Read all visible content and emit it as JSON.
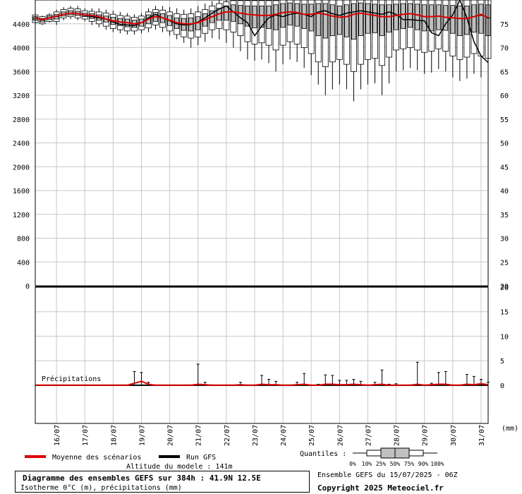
{
  "chart_data": {
    "type": "box",
    "title": "Diagramme des ensembles GEFS sur 384h : 41.9N 12.5E",
    "subtitle": "Isotherme 0°C (m), précipitations (mm)",
    "altitude_label": "Altitude du modele : 141m",
    "ensemble_label": "Ensemble GEFS du 15/07/2025 - 06Z",
    "copyright": "Copyright 2025 Meteociel.fr",
    "precip_label": "Précipitations",
    "precip_unit": "(mm)",
    "quantiles_label": "Quantiles :",
    "quantile_ticks": [
      "0%",
      "10%",
      "25%",
      "50%",
      "75%",
      "90%",
      "100%"
    ],
    "x_date_labels": [
      "16/07",
      "17/07",
      "18/07",
      "19/07",
      "20/07",
      "21/07",
      "22/07",
      "23/07",
      "24/07",
      "25/07",
      "26/07",
      "27/07",
      "28/07",
      "29/07",
      "30/07",
      "31/07"
    ],
    "top_panel": {
      "ylim": [
        0,
        4800
      ],
      "left_ticks": [
        0,
        400,
        800,
        1200,
        1600,
        2000,
        2400,
        2800,
        3200,
        3600,
        4000,
        4400
      ],
      "right_ticks": [
        20,
        25,
        30,
        35,
        40,
        45,
        50,
        55,
        60,
        65,
        70,
        75
      ]
    },
    "bottom_panel": {
      "ylim": [
        -7.8,
        20
      ],
      "right_ticks": [
        0,
        5,
        10,
        15,
        20
      ]
    },
    "legend": [
      {
        "name": "Moyenne des scénarios",
        "color": "#dd0000"
      },
      {
        "name": "Run GFS",
        "color": "#000000"
      }
    ],
    "colors": {
      "mean": "#dd0000",
      "run": "#000000",
      "box": "#c0c0c0",
      "grid": "#c8c8c8"
    },
    "time_hours": [
      0,
      6,
      12,
      18,
      24,
      30,
      36,
      42,
      48,
      54,
      60,
      66,
      72,
      78,
      84,
      90,
      96,
      102,
      108,
      114,
      120,
      126,
      132,
      138,
      144,
      150,
      156,
      162,
      168,
      174,
      180,
      186,
      192,
      198,
      204,
      210,
      216,
      222,
      228,
      234,
      240,
      246,
      252,
      258,
      264,
      270,
      276,
      282,
      288,
      294,
      300,
      306,
      312,
      318,
      324,
      330,
      336,
      342,
      348,
      354,
      360,
      366,
      372,
      378,
      384
    ],
    "mean": [
      4500,
      4470,
      4500,
      4530,
      4560,
      4580,
      4570,
      4550,
      4540,
      4520,
      4480,
      4450,
      4430,
      4420,
      4400,
      4420,
      4480,
      4520,
      4500,
      4460,
      4420,
      4400,
      4400,
      4420,
      4470,
      4520,
      4570,
      4600,
      4600,
      4580,
      4560,
      4550,
      4540,
      4540,
      4560,
      4590,
      4600,
      4590,
      4560,
      4560,
      4580,
      4560,
      4530,
      4510,
      4520,
      4560,
      4580,
      4560,
      4540,
      4520,
      4520,
      4540,
      4560,
      4570,
      4550,
      4520,
      4520,
      4530,
      4510,
      4500,
      4490,
      4490,
      4520,
      4560,
      4500
    ],
    "run": [
      4500,
      4470,
      4500,
      4530,
      4560,
      4580,
      4570,
      4540,
      4520,
      4500,
      4480,
      4430,
      4390,
      4380,
      4370,
      4420,
      4500,
      4560,
      4500,
      4450,
      4400,
      4380,
      4390,
      4430,
      4500,
      4580,
      4650,
      4700,
      4600,
      4500,
      4420,
      4200,
      4360,
      4500,
      4550,
      4520,
      4560,
      4580,
      4560,
      4520,
      4600,
      4620,
      4570,
      4540,
      4580,
      4600,
      4620,
      4600,
      4580,
      4560,
      4600,
      4560,
      4470,
      4470,
      4460,
      4450,
      4250,
      4200,
      4400,
      4550,
      4800,
      4500,
      4100,
      3860,
      3750
    ],
    "boxes": [
      {
        "p0": 4400,
        "p10": 4420,
        "p25": 4460,
        "p50": 4490,
        "p75": 4520,
        "p90": 4550,
        "p100": 4580
      },
      {
        "p0": 4380,
        "p10": 4400,
        "p25": 4430,
        "p50": 4460,
        "p75": 4490,
        "p90": 4520,
        "p100": 4540
      },
      {
        "p0": 4420,
        "p10": 4440,
        "p25": 4470,
        "p50": 4500,
        "p75": 4530,
        "p90": 4550,
        "p100": 4580
      },
      {
        "p0": 4380,
        "p10": 4440,
        "p25": 4480,
        "p50": 4520,
        "p75": 4560,
        "p90": 4600,
        "p100": 4640
      },
      {
        "p0": 4460,
        "p10": 4500,
        "p25": 4530,
        "p50": 4560,
        "p75": 4600,
        "p90": 4640,
        "p100": 4680
      },
      {
        "p0": 4480,
        "p10": 4520,
        "p25": 4550,
        "p50": 4580,
        "p75": 4620,
        "p90": 4660,
        "p100": 4700
      },
      {
        "p0": 4460,
        "p10": 4500,
        "p25": 4540,
        "p50": 4570,
        "p75": 4610,
        "p90": 4650,
        "p100": 4700
      },
      {
        "p0": 4440,
        "p10": 4480,
        "p25": 4520,
        "p50": 4550,
        "p75": 4580,
        "p90": 4620,
        "p100": 4660
      },
      {
        "p0": 4380,
        "p10": 4440,
        "p25": 4490,
        "p50": 4530,
        "p75": 4570,
        "p90": 4610,
        "p100": 4660
      },
      {
        "p0": 4340,
        "p10": 4400,
        "p25": 4460,
        "p50": 4510,
        "p75": 4550,
        "p90": 4600,
        "p100": 4660
      },
      {
        "p0": 4300,
        "p10": 4360,
        "p25": 4430,
        "p50": 4480,
        "p75": 4530,
        "p90": 4580,
        "p100": 4640
      },
      {
        "p0": 4260,
        "p10": 4320,
        "p25": 4390,
        "p50": 4450,
        "p75": 4510,
        "p90": 4560,
        "p100": 4620
      },
      {
        "p0": 4240,
        "p10": 4300,
        "p25": 4370,
        "p50": 4430,
        "p75": 4490,
        "p90": 4540,
        "p100": 4600
      },
      {
        "p0": 4220,
        "p10": 4280,
        "p25": 4350,
        "p50": 4420,
        "p75": 4480,
        "p90": 4530,
        "p100": 4580
      },
      {
        "p0": 4220,
        "p10": 4280,
        "p25": 4340,
        "p50": 4400,
        "p75": 4460,
        "p90": 4510,
        "p100": 4560
      },
      {
        "p0": 4240,
        "p10": 4300,
        "p25": 4360,
        "p50": 4420,
        "p75": 4480,
        "p90": 4530,
        "p100": 4580
      },
      {
        "p0": 4260,
        "p10": 4330,
        "p25": 4400,
        "p50": 4480,
        "p75": 4550,
        "p90": 4600,
        "p100": 4660
      },
      {
        "p0": 4300,
        "p10": 4380,
        "p25": 4440,
        "p50": 4520,
        "p75": 4590,
        "p90": 4640,
        "p100": 4700
      },
      {
        "p0": 4260,
        "p10": 4340,
        "p25": 4420,
        "p50": 4500,
        "p75": 4570,
        "p90": 4630,
        "p100": 4700
      },
      {
        "p0": 4200,
        "p10": 4280,
        "p25": 4370,
        "p50": 4460,
        "p75": 4540,
        "p90": 4600,
        "p100": 4680
      },
      {
        "p0": 4140,
        "p10": 4220,
        "p25": 4320,
        "p50": 4420,
        "p75": 4500,
        "p90": 4570,
        "p100": 4660
      },
      {
        "p0": 4080,
        "p10": 4180,
        "p25": 4290,
        "p50": 4400,
        "p75": 4490,
        "p90": 4560,
        "p100": 4640
      },
      {
        "p0": 4000,
        "p10": 4160,
        "p25": 4280,
        "p50": 4400,
        "p75": 4500,
        "p90": 4570,
        "p100": 4660
      },
      {
        "p0": 4040,
        "p10": 4180,
        "p25": 4300,
        "p50": 4420,
        "p75": 4520,
        "p90": 4600,
        "p100": 4700
      },
      {
        "p0": 4100,
        "p10": 4240,
        "p25": 4360,
        "p50": 4470,
        "p75": 4570,
        "p90": 4640,
        "p100": 4740
      },
      {
        "p0": 4160,
        "p10": 4300,
        "p25": 4420,
        "p50": 4520,
        "p75": 4620,
        "p90": 4700,
        "p100": 4780
      },
      {
        "p0": 4140,
        "p10": 4320,
        "p25": 4460,
        "p50": 4570,
        "p75": 4660,
        "p90": 4740,
        "p100": 4800
      },
      {
        "p0": 4080,
        "p10": 4300,
        "p25": 4460,
        "p50": 4600,
        "p75": 4700,
        "p90": 4770,
        "p100": 4800
      },
      {
        "p0": 4000,
        "p10": 4260,
        "p25": 4440,
        "p50": 4600,
        "p75": 4720,
        "p90": 4790,
        "p100": 4800
      },
      {
        "p0": 3940,
        "p10": 4200,
        "p25": 4400,
        "p50": 4580,
        "p75": 4710,
        "p90": 4790,
        "p100": 4800
      },
      {
        "p0": 3800,
        "p10": 4100,
        "p25": 4360,
        "p50": 4560,
        "p75": 4700,
        "p90": 4790,
        "p100": 4800
      },
      {
        "p0": 3780,
        "p10": 4060,
        "p25": 4330,
        "p50": 4550,
        "p75": 4700,
        "p90": 4790,
        "p100": 4800
      },
      {
        "p0": 3800,
        "p10": 4080,
        "p25": 4340,
        "p50": 4540,
        "p75": 4700,
        "p90": 4790,
        "p100": 4800
      },
      {
        "p0": 3740,
        "p10": 4040,
        "p25": 4320,
        "p50": 4540,
        "p75": 4700,
        "p90": 4790,
        "p100": 4800
      },
      {
        "p0": 3600,
        "p10": 3960,
        "p25": 4300,
        "p50": 4560,
        "p75": 4720,
        "p90": 4790,
        "p100": 4800
      },
      {
        "p0": 3720,
        "p10": 4040,
        "p25": 4340,
        "p50": 4590,
        "p75": 4740,
        "p90": 4800,
        "p100": 4800
      },
      {
        "p0": 3800,
        "p10": 4100,
        "p25": 4380,
        "p50": 4600,
        "p75": 4750,
        "p90": 4800,
        "p100": 4800
      },
      {
        "p0": 3760,
        "p10": 4060,
        "p25": 4360,
        "p50": 4590,
        "p75": 4740,
        "p90": 4800,
        "p100": 4800
      },
      {
        "p0": 3660,
        "p10": 4000,
        "p25": 4320,
        "p50": 4560,
        "p75": 4730,
        "p90": 4800,
        "p100": 4800
      },
      {
        "p0": 3540,
        "p10": 3900,
        "p25": 4280,
        "p50": 4560,
        "p75": 4730,
        "p90": 4800,
        "p100": 4800
      },
      {
        "p0": 3380,
        "p10": 3760,
        "p25": 4200,
        "p50": 4580,
        "p75": 4740,
        "p90": 4800,
        "p100": 4800
      },
      {
        "p0": 3200,
        "p10": 3680,
        "p25": 4160,
        "p50": 4560,
        "p75": 4740,
        "p90": 4800,
        "p100": 4800
      },
      {
        "p0": 3300,
        "p10": 3760,
        "p25": 4200,
        "p50": 4530,
        "p75": 4720,
        "p90": 4800,
        "p100": 4800
      },
      {
        "p0": 3380,
        "p10": 3800,
        "p25": 4220,
        "p50": 4510,
        "p75": 4700,
        "p90": 4800,
        "p100": 4800
      },
      {
        "p0": 3300,
        "p10": 3720,
        "p25": 4180,
        "p50": 4520,
        "p75": 4720,
        "p90": 4800,
        "p100": 4800
      },
      {
        "p0": 3100,
        "p10": 3600,
        "p25": 4140,
        "p50": 4560,
        "p75": 4740,
        "p90": 4800,
        "p100": 4800
      },
      {
        "p0": 3300,
        "p10": 3720,
        "p25": 4200,
        "p50": 4580,
        "p75": 4750,
        "p90": 4800,
        "p100": 4800
      },
      {
        "p0": 3380,
        "p10": 3800,
        "p25": 4240,
        "p50": 4560,
        "p75": 4740,
        "p90": 4800,
        "p100": 4800
      },
      {
        "p0": 3400,
        "p10": 3820,
        "p25": 4250,
        "p50": 4540,
        "p75": 4730,
        "p90": 4800,
        "p100": 4800
      },
      {
        "p0": 3200,
        "p10": 3700,
        "p25": 4200,
        "p50": 4520,
        "p75": 4720,
        "p90": 4800,
        "p100": 4800
      },
      {
        "p0": 3400,
        "p10": 3840,
        "p25": 4260,
        "p50": 4520,
        "p75": 4720,
        "p90": 4800,
        "p100": 4800
      },
      {
        "p0": 3600,
        "p10": 3960,
        "p25": 4300,
        "p50": 4540,
        "p75": 4730,
        "p90": 4800,
        "p100": 4800
      },
      {
        "p0": 3620,
        "p10": 3980,
        "p25": 4320,
        "p50": 4560,
        "p75": 4740,
        "p90": 4800,
        "p100": 4800
      },
      {
        "p0": 3660,
        "p10": 4000,
        "p25": 4340,
        "p50": 4570,
        "p75": 4740,
        "p90": 4800,
        "p100": 4800
      },
      {
        "p0": 3620,
        "p10": 3960,
        "p25": 4300,
        "p50": 4550,
        "p75": 4730,
        "p90": 4800,
        "p100": 4800
      },
      {
        "p0": 3560,
        "p10": 3920,
        "p25": 4280,
        "p50": 4520,
        "p75": 4720,
        "p90": 4800,
        "p100": 4800
      },
      {
        "p0": 3580,
        "p10": 3940,
        "p25": 4280,
        "p50": 4520,
        "p75": 4720,
        "p90": 4800,
        "p100": 4800
      },
      {
        "p0": 3640,
        "p10": 3980,
        "p25": 4300,
        "p50": 4530,
        "p75": 4720,
        "p90": 4800,
        "p100": 4800
      },
      {
        "p0": 3600,
        "p10": 3940,
        "p25": 4290,
        "p50": 4510,
        "p75": 4710,
        "p90": 4800,
        "p100": 4800
      },
      {
        "p0": 3500,
        "p10": 3860,
        "p25": 4240,
        "p50": 4500,
        "p75": 4710,
        "p90": 4800,
        "p100": 4800
      },
      {
        "p0": 3440,
        "p10": 3800,
        "p25": 4200,
        "p50": 4490,
        "p75": 4700,
        "p90": 4800,
        "p100": 4800
      },
      {
        "p0": 3480,
        "p10": 3840,
        "p25": 4220,
        "p50": 4490,
        "p75": 4700,
        "p90": 4800,
        "p100": 4800
      },
      {
        "p0": 3560,
        "p10": 3900,
        "p25": 4260,
        "p50": 4520,
        "p75": 4720,
        "p90": 4800,
        "p100": 4800
      },
      {
        "p0": 3500,
        "p10": 3860,
        "p25": 4240,
        "p50": 4540,
        "p75": 4730,
        "p90": 4800,
        "p100": 4800
      },
      {
        "p0": 3580,
        "p10": 3820,
        "p25": 4200,
        "p50": 4500,
        "p75": 4720,
        "p90": 4800,
        "p100": 4800
      }
    ],
    "precip_max": [
      0,
      0,
      0,
      0,
      0,
      0,
      0,
      0,
      0,
      0,
      0,
      0,
      0,
      0,
      2.8,
      2.6,
      0.6,
      0,
      0,
      0,
      0,
      0,
      0,
      4.3,
      0.6,
      0,
      0,
      0,
      0,
      0.6,
      0,
      0,
      2.0,
      1.2,
      0.8,
      0,
      0,
      0.6,
      2.4,
      0,
      0.2,
      2.1,
      2.0,
      1.0,
      1.0,
      1.2,
      0.8,
      0,
      0.6,
      3.1,
      0.2,
      0.3,
      0,
      0,
      4.7,
      0,
      0.4,
      2.6,
      2.8,
      0,
      0,
      2.2,
      1.8,
      1.2,
      0.6
    ],
    "precip_mean": [
      0,
      0,
      0,
      0,
      0,
      0,
      0,
      0,
      0,
      0,
      0,
      0,
      0,
      0,
      0.4,
      0.8,
      0.2,
      0,
      0,
      0,
      0,
      0,
      0,
      0.2,
      0.1,
      0,
      0,
      0,
      0,
      0.1,
      0,
      0,
      0.2,
      0.1,
      0.1,
      0,
      0,
      0.1,
      0.2,
      0,
      0,
      0.2,
      0.2,
      0.1,
      0.1,
      0.2,
      0.1,
      0,
      0.1,
      0.2,
      0,
      0,
      0,
      0,
      0.2,
      0,
      0.1,
      0.2,
      0.2,
      0,
      0,
      0.2,
      0.1,
      0.3,
      0.1
    ]
  }
}
